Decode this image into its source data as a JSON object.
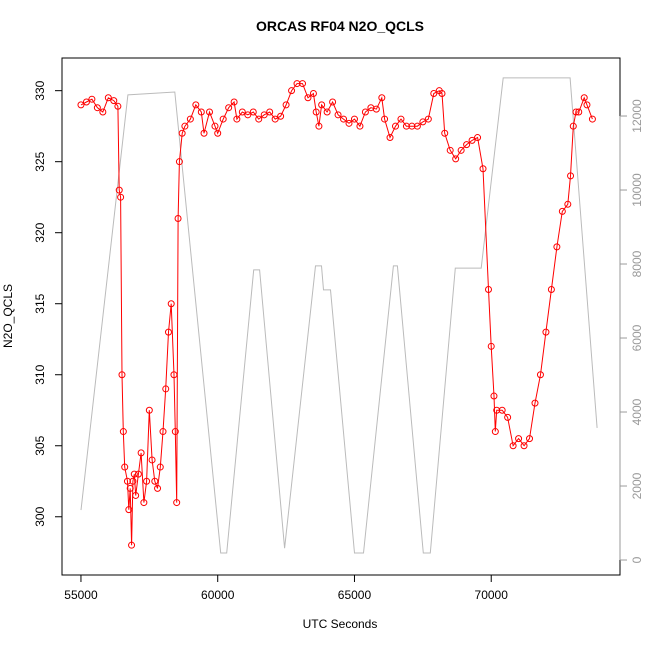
{
  "chart_data": {
    "type": "line",
    "title": "ORCAS RF04 N2O_QCLS",
    "x_label": "UTC Seconds",
    "y_label": "N2O_QCLS",
    "xlim": [
      54307,
      74708
    ],
    "xticks": [
      55000,
      60000,
      65000,
      70000
    ],
    "ylim": [
      295.9,
      332.3
    ],
    "yticks": [
      300,
      305,
      310,
      315,
      320,
      325,
      330
    ],
    "y2lim": [
      -405,
      13568
    ],
    "y2ticks": [
      0,
      2000,
      4000,
      6000,
      8000,
      10000,
      12000
    ],
    "series": [
      {
        "color": "#bbbbbb",
        "axis": "y2",
        "marker": "none",
        "x": [
          55000,
          56715,
          58431,
          60109,
          60328,
          61314,
          61533,
          62445,
          63577,
          63796,
          63869,
          64124,
          65000,
          65329,
          66424,
          66570,
          67518,
          67774,
          68686,
          69635,
          70438,
          72883,
          73869
        ],
        "values": [
          1350,
          12570,
          12650,
          190,
          190,
          7840,
          7840,
          320,
          7950,
          7950,
          7300,
          7300,
          190,
          190,
          7950,
          7950,
          190,
          190,
          7890,
          7890,
          13030,
          13030,
          3570
        ]
      },
      {
        "color": "#ff0000",
        "axis": "y",
        "marker": "circle",
        "x": [
          55000,
          55200,
          55400,
          55600,
          55800,
          56000,
          56200,
          56350,
          56400,
          56450,
          56500,
          56550,
          56600,
          56700,
          56750,
          56800,
          56850,
          56900,
          56950,
          57000,
          57100,
          57200,
          57300,
          57400,
          57500,
          57600,
          57700,
          57800,
          57900,
          58000,
          58100,
          58200,
          58300,
          58400,
          58450,
          58500,
          58550,
          58600,
          58700,
          58800,
          59000,
          59200,
          59400,
          59500,
          59700,
          59900,
          60000,
          60200,
          60400,
          60600,
          60700,
          60900,
          61100,
          61300,
          61500,
          61700,
          61900,
          62100,
          62300,
          62500,
          62700,
          62900,
          63100,
          63300,
          63500,
          63600,
          63700,
          63800,
          64000,
          64200,
          64400,
          64600,
          64800,
          65000,
          65200,
          65400,
          65600,
          65800,
          66000,
          66100,
          66300,
          66500,
          66700,
          66900,
          67100,
          67300,
          67500,
          67700,
          67900,
          68100,
          68200,
          68300,
          68500,
          68700,
          68900,
          69100,
          69300,
          69500,
          69700,
          69900,
          70000,
          70100,
          70150,
          70200,
          70400,
          70600,
          70800,
          71000,
          71200,
          71400,
          71600,
          71800,
          72000,
          72200,
          72400,
          72600,
          72800,
          72900,
          73000,
          73100,
          73200,
          73400,
          73500,
          73700
        ],
        "values": [
          329.0,
          329.2,
          329.4,
          328.8,
          328.5,
          329.5,
          329.3,
          328.9,
          323.0,
          322.5,
          310.0,
          306.0,
          303.5,
          302.5,
          300.5,
          302.0,
          298.0,
          302.5,
          303.0,
          301.5,
          303.0,
          304.5,
          301.0,
          302.5,
          307.5,
          304.0,
          302.5,
          302.0,
          303.5,
          306.0,
          309.0,
          313.0,
          315.0,
          310.0,
          306.0,
          301.0,
          321.0,
          325.0,
          327.0,
          327.5,
          328.0,
          329.0,
          328.5,
          327.0,
          328.5,
          327.5,
          327.0,
          328.0,
          328.8,
          329.2,
          328.0,
          328.5,
          328.3,
          328.5,
          328.0,
          328.3,
          328.5,
          328.0,
          328.2,
          329.0,
          330.0,
          330.5,
          330.5,
          329.5,
          329.8,
          328.5,
          327.5,
          329.0,
          328.5,
          329.2,
          328.3,
          328.0,
          327.7,
          328.0,
          327.5,
          328.5,
          328.8,
          328.7,
          329.5,
          328.0,
          326.7,
          327.5,
          328.0,
          327.5,
          327.5,
          327.5,
          327.8,
          328.0,
          329.8,
          330.0,
          329.8,
          327.0,
          325.8,
          325.2,
          325.8,
          326.2,
          326.5,
          326.7,
          324.5,
          316.0,
          312.0,
          308.5,
          306.0,
          307.5,
          307.5,
          307.0,
          305.0,
          305.5,
          305.0,
          305.5,
          308.0,
          310.0,
          313.0,
          316.0,
          319.0,
          321.5,
          322.0,
          324.0,
          327.5,
          328.5,
          328.5,
          329.5,
          329.0,
          328.0
        ]
      }
    ]
  }
}
